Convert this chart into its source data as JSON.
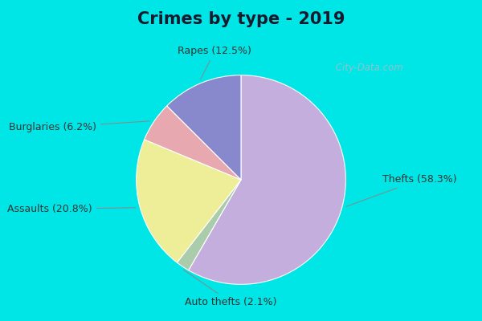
{
  "title": "Crimes by type - 2019",
  "slices": [
    {
      "label": "Thefts (58.3%)",
      "value": 58.3,
      "color": "#c4aede"
    },
    {
      "label": "Rapes (12.5%)",
      "value": 12.5,
      "color": "#8888cc"
    },
    {
      "label": "Burglaries (6.2%)",
      "value": 6.2,
      "color": "#e8a8b0"
    },
    {
      "label": "Assaults (20.8%)",
      "value": 20.8,
      "color": "#eeee99"
    },
    {
      "label": "Auto thefts (2.1%)",
      "value": 2.1,
      "color": "#aaccaa"
    }
  ],
  "bg_cyan": "#00e5e5",
  "bg_chart": "#dff2e8",
  "title_fontsize": 15,
  "label_fontsize": 9,
  "watermark": " City-Data.com",
  "title_color": "#1a1a2e",
  "label_color": "#333333"
}
